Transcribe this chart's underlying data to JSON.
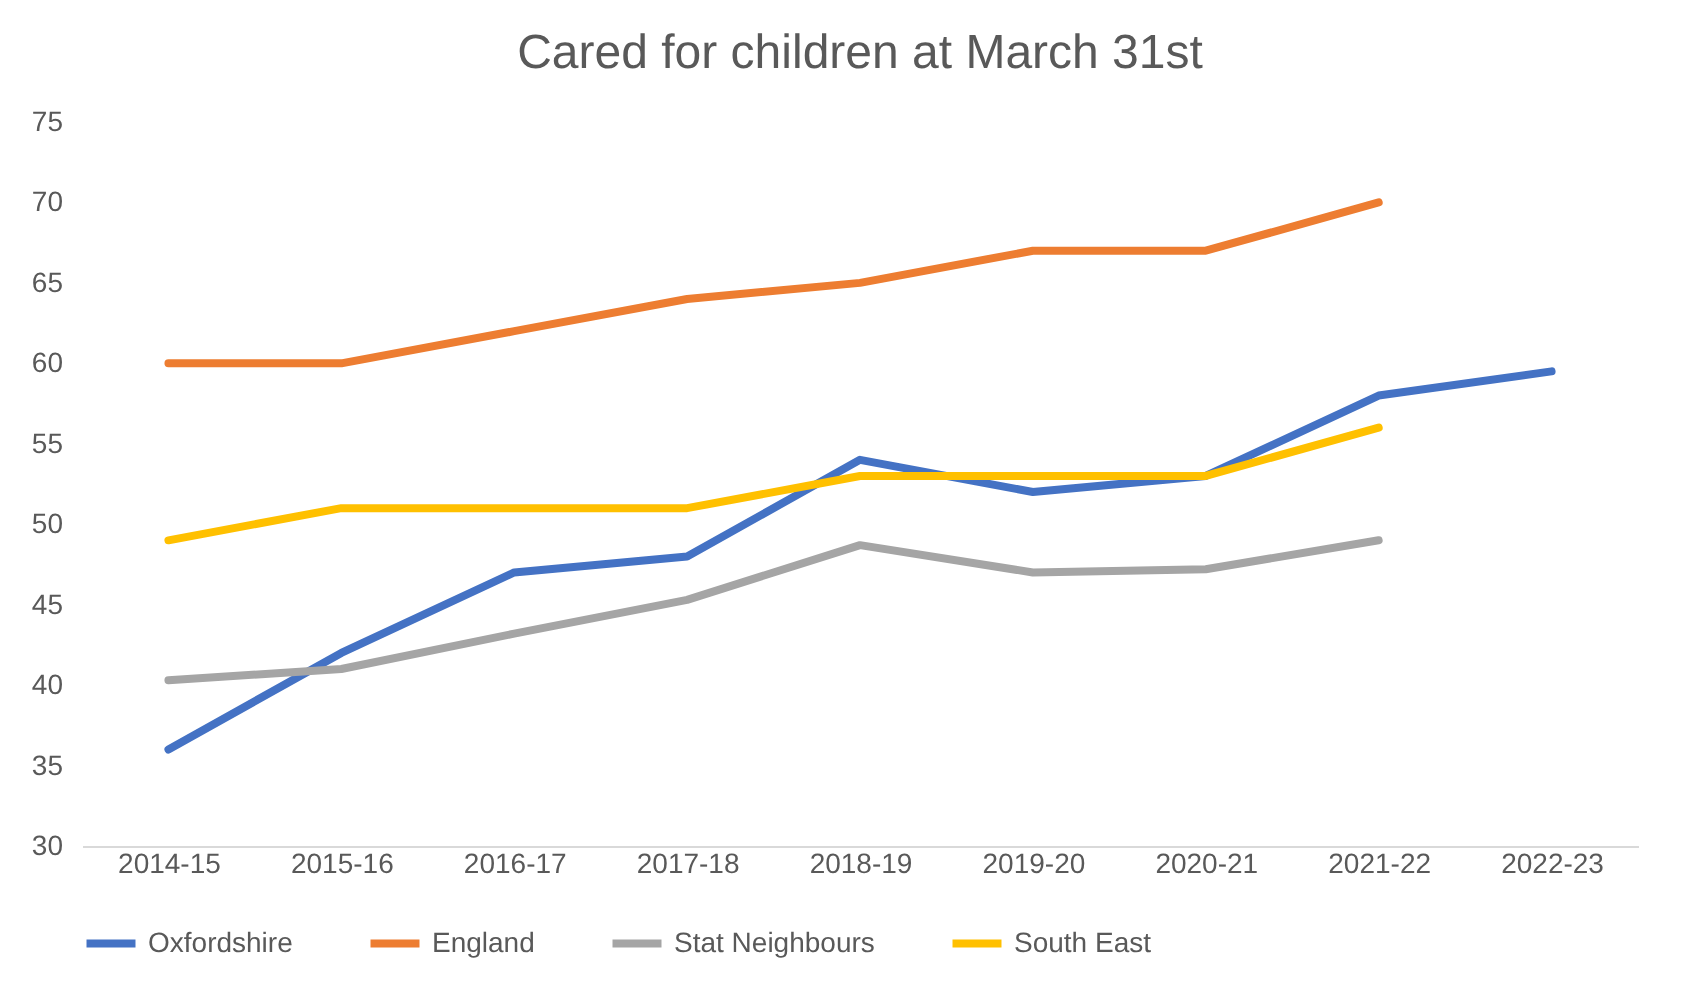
{
  "chart_data": {
    "type": "line",
    "title": "Cared for children at March 31st",
    "categories": [
      "2014-15",
      "2015-16",
      "2016-17",
      "2017-18",
      "2018-19",
      "2019-20",
      "2020-21",
      "2021-22",
      "2022-23"
    ],
    "series": [
      {
        "name": "Oxfordshire",
        "color": "#4472c4",
        "values": [
          36,
          42,
          47,
          48,
          54,
          52,
          53,
          58,
          59.5
        ]
      },
      {
        "name": "England",
        "color": "#ed7d31",
        "values": [
          60,
          60,
          62,
          64,
          65,
          67,
          67,
          70,
          null
        ]
      },
      {
        "name": "Stat Neighbours",
        "color": "#a5a5a5",
        "values": [
          40.3,
          41,
          43.2,
          45.3,
          48.7,
          47,
          47.2,
          49,
          null
        ]
      },
      {
        "name": "South East",
        "color": "#ffc000",
        "values": [
          49,
          51,
          51,
          51,
          53,
          53,
          53,
          56,
          null
        ]
      }
    ],
    "ylim": [
      30,
      75
    ],
    "yticks": [
      30,
      35,
      40,
      45,
      50,
      55,
      60,
      65,
      70,
      75
    ],
    "grid": false,
    "legend": "bottom",
    "marker": "none",
    "line_style": "solid"
  }
}
